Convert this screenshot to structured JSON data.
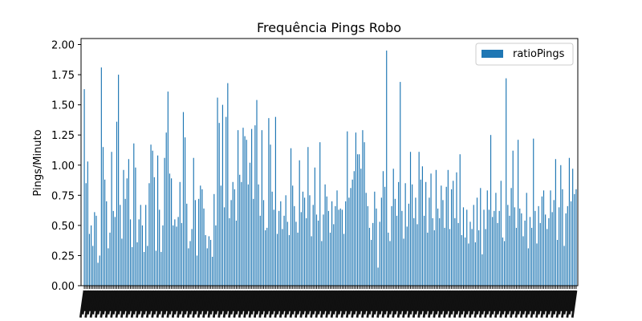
{
  "chart_data": {
    "type": "bar",
    "title": "Frequência Pings Robo",
    "xlabel": "",
    "ylabel": "Pings/Minuto",
    "ylim": [
      0,
      2.05
    ],
    "yticks": [
      "0.00",
      "0.25",
      "0.50",
      "0.75",
      "1.00",
      "1.25",
      "1.50",
      "1.75",
      "2.00"
    ],
    "grid": false,
    "legend_position": "top-right",
    "series": [
      {
        "name": "ratioPings",
        "color": "#1f77b4",
        "values": [
          1.63,
          0.85,
          1.03,
          0.43,
          0.5,
          0.33,
          0.61,
          0.58,
          0.19,
          0.25,
          1.81,
          1.15,
          0.88,
          0.7,
          0.31,
          0.44,
          1.11,
          0.62,
          0.57,
          1.36,
          1.75,
          0.67,
          0.39,
          0.96,
          0.72,
          0.89,
          1.05,
          0.55,
          0.32,
          1.18,
          0.98,
          0.36,
          0.55,
          0.67,
          0.5,
          0.28,
          0.67,
          0.33,
          0.85,
          1.17,
          1.12,
          0.9,
          0.29,
          1.08,
          0.63,
          0.28,
          0.5,
          1.06,
          1.27,
          1.61,
          0.93,
          0.89,
          0.5,
          0.55,
          0.49,
          0.57,
          0.86,
          0.52,
          1.44,
          1.23,
          0.68,
          0.31,
          0.37,
          0.47,
          1.06,
          0.71,
          0.25,
          0.72,
          0.83,
          0.8,
          0.64,
          0.42,
          0.31,
          0.41,
          0.38,
          0.24,
          0.76,
          0.5,
          1.56,
          1.35,
          0.83,
          1.5,
          0.65,
          1.4,
          1.68,
          0.56,
          0.71,
          0.86,
          0.8,
          0.54,
          1.29,
          0.92,
          0.86,
          1.31,
          1.24,
          1.21,
          0.84,
          1.02,
          1.3,
          0.72,
          1.33,
          1.54,
          0.84,
          0.58,
          1.29,
          0.71,
          0.46,
          0.48,
          1.39,
          1.17,
          0.78,
          0.63,
          1.4,
          0.43,
          0.62,
          0.7,
          0.47,
          0.58,
          0.75,
          0.53,
          0.42,
          1.14,
          0.83,
          0.66,
          0.53,
          0.44,
          1.04,
          0.61,
          0.78,
          0.73,
          0.56,
          1.15,
          0.75,
          0.41,
          0.67,
          0.98,
          0.59,
          0.54,
          1.19,
          0.37,
          0.59,
          0.84,
          0.74,
          0.62,
          0.44,
          0.7,
          0.51,
          0.66,
          0.79,
          0.63,
          0.64,
          0.63,
          0.43,
          0.7,
          1.28,
          0.73,
          0.81,
          0.88,
          0.95,
          1.27,
          1.09,
          1.09,
          0.97,
          1.29,
          1.19,
          0.77,
          0.66,
          0.48,
          0.38,
          0.52,
          0.78,
          0.64,
          0.15,
          0.53,
          0.73,
          0.95,
          0.82,
          1.95,
          0.44,
          0.37,
          0.66,
          0.97,
          0.72,
          0.58,
          0.86,
          1.69,
          0.62,
          0.39,
          0.85,
          0.49,
          0.68,
          1.11,
          0.84,
          0.56,
          0.73,
          0.51,
          1.11,
          0.88,
          0.99,
          0.58,
          0.86,
          0.44,
          0.73,
          0.93,
          0.56,
          0.46,
          0.96,
          0.64,
          0.56,
          0.83,
          0.71,
          0.48,
          0.82,
          0.96,
          0.47,
          0.8,
          0.87,
          0.56,
          0.94,
          0.52,
          1.09,
          0.42,
          0.65,
          0.4,
          0.63,
          0.35,
          0.53,
          0.47,
          0.67,
          0.36,
          0.73,
          0.46,
          0.81,
          0.26,
          0.63,
          0.47,
          0.79,
          0.63,
          1.25,
          0.57,
          0.62,
          0.77,
          0.52,
          0.62,
          0.87,
          0.4,
          0.37,
          1.72,
          0.67,
          0.58,
          0.81,
          1.12,
          0.65,
          0.48,
          1.21,
          0.64,
          0.6,
          0.41,
          0.54,
          0.77,
          0.31,
          0.57,
          0.48,
          1.22,
          0.62,
          0.35,
          0.66,
          0.52,
          0.74,
          0.79,
          0.59,
          0.47,
          0.56,
          0.79,
          0.61,
          0.71,
          1.05,
          0.38,
          0.65,
          1.0,
          0.8,
          0.33,
          0.6,
          0.66,
          1.06,
          0.7,
          0.97,
          0.76,
          0.8
        ]
      }
    ]
  }
}
